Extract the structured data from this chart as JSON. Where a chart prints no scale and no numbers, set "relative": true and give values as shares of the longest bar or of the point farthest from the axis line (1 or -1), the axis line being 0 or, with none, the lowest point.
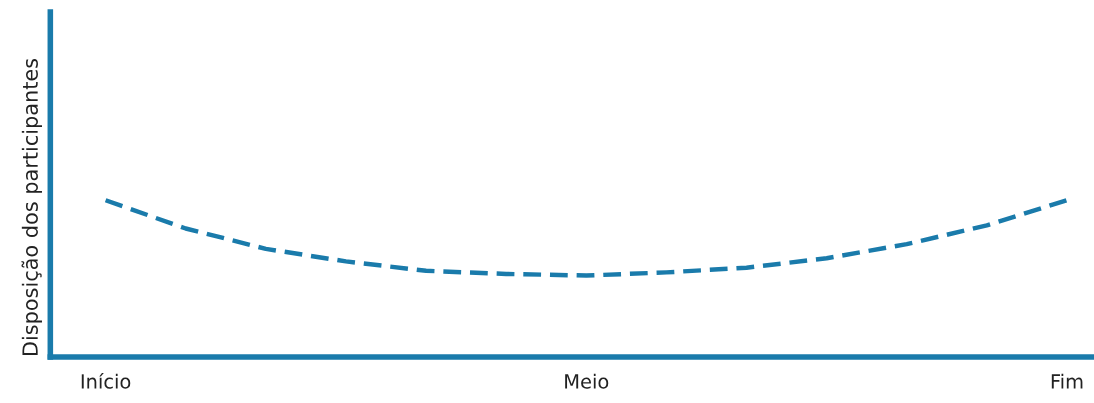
{
  "chart_data": {
    "type": "line",
    "relative": true,
    "ylabel": "Disposição dos participantes",
    "categories": [
      "Início",
      null,
      null,
      null,
      null,
      null,
      "Meio",
      null,
      null,
      null,
      null,
      null,
      "Fim"
    ],
    "series": [
      {
        "color": "#1a7bab",
        "values": [
          1,
          0.82,
          0.69,
          0.61,
          0.55,
          0.53,
          0.52,
          0.54,
          0.57,
          0.63,
          0.72,
          0.84,
          1
        ]
      }
    ],
    "line_style": "dashed",
    "marker": "none",
    "grid": false,
    "legend": false
  }
}
